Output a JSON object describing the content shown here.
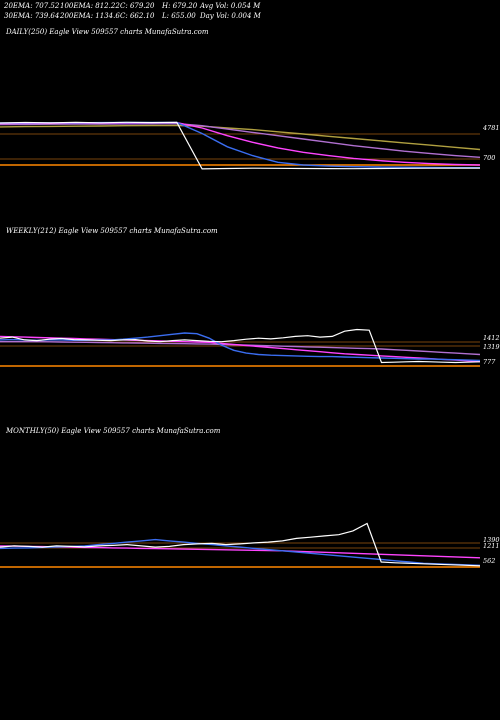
{
  "header": {
    "row1": [
      "20EMA: 707.52",
      "100EMA: 812.22",
      "C: 679.20",
      "H: 679.20",
      "Avg Vol: 0.054  M"
    ],
    "row2": [
      "30EMA: 739.64",
      "200EMA: 1134.6",
      "C: 662.10",
      "L: 655.00",
      "Day Vol: 0.004  M"
    ]
  },
  "colors": {
    "background": "#000000",
    "price": "#ffffff",
    "ema_fast": "#3a6df0",
    "ema_pink": "#ff44ff",
    "ema_purple": "#b070d0",
    "ema_orange": "#e07820",
    "ema_olive": "#b0a040",
    "ref_line": "#a05a10",
    "volume_line": "#ff8800"
  },
  "chart_data": [
    {
      "type": "line",
      "title": "DAILY(250) Eagle  View  509557 charts MunafaSutra.com",
      "right_labels": [
        "4781",
        "700"
      ],
      "series": [
        {
          "values": [
            4750,
            4790,
            4760,
            4800,
            4770,
            4810,
            4780,
            4800,
            600,
            640,
            660,
            650,
            640,
            630,
            620,
            640,
            650,
            660,
            670,
            670
          ]
        },
        {
          "values": [
            4750,
            4760,
            4770,
            4770,
            4780,
            4790,
            4790,
            4790,
            3800,
            2600,
            1800,
            1200,
            950,
            850,
            800,
            770,
            750,
            730,
            710,
            710
          ]
        },
        {
          "values": [
            4700,
            4720,
            4730,
            4740,
            4750,
            4760,
            4770,
            4780,
            4300,
            3600,
            3000,
            2500,
            2100,
            1800,
            1550,
            1350,
            1200,
            1080,
            1000,
            950
          ]
        },
        {
          "values": [
            4600,
            4620,
            4640,
            4650,
            4660,
            4670,
            4680,
            4690,
            4500,
            4200,
            3900,
            3600,
            3300,
            3000,
            2700,
            2450,
            2200,
            2000,
            1800,
            1650
          ]
        },
        {
          "values": [
            4400,
            4420,
            4440,
            4460,
            4480,
            4500,
            4510,
            4520,
            4460,
            4300,
            4150,
            3950,
            3750,
            3550,
            3350,
            3150,
            2950,
            2750,
            2550,
            2350
          ]
        }
      ]
    },
    {
      "type": "line",
      "title": "WEEKLY(212) Eagle  View  509557 charts MunafaSutra.com",
      "right_labels": [
        "1412",
        "1319",
        "777"
      ],
      "series": [
        {
          "values": [
            1350,
            1380,
            1300,
            1280,
            1320,
            1340,
            1310,
            1300,
            1290,
            1280,
            1300,
            1310,
            1270,
            1250,
            1280,
            1300,
            1280,
            1260,
            1250,
            1280,
            1320,
            1350,
            1330,
            1360,
            1400,
            1420,
            1380,
            1400,
            1550,
            1600,
            1580,
            650,
            660,
            670,
            680,
            670,
            660,
            650,
            660,
            670
          ]
        },
        {
          "values": [
            1300,
            1310,
            1300,
            1290,
            1300,
            1300,
            1290,
            1290,
            1300,
            1300,
            1320,
            1350,
            1380,
            1420,
            1460,
            1500,
            1480,
            1350,
            1150,
            1000,
            920,
            880,
            860,
            850,
            840,
            830,
            820,
            820,
            810,
            800,
            790,
            780,
            770,
            760,
            750,
            750,
            740,
            730,
            720,
            710
          ]
        },
        {
          "values": [
            1400,
            1390,
            1380,
            1370,
            1360,
            1350,
            1340,
            1330,
            1320,
            1310,
            1300,
            1290,
            1280,
            1270,
            1260,
            1250,
            1240,
            1230,
            1200,
            1170,
            1140,
            1110,
            1080,
            1050,
            1020,
            990,
            960,
            930,
            900,
            880,
            860,
            840,
            820,
            800,
            780,
            760,
            740,
            720,
            700,
            680
          ]
        },
        {
          "values": [
            1250,
            1250,
            1250,
            1250,
            1245,
            1240,
            1235,
            1230,
            1225,
            1220,
            1215,
            1210,
            1205,
            1200,
            1195,
            1190,
            1185,
            1180,
            1170,
            1160,
            1150,
            1140,
            1130,
            1120,
            1110,
            1100,
            1090,
            1080,
            1070,
            1060,
            1050,
            1040,
            1020,
            1000,
            980,
            960,
            940,
            920,
            900,
            880
          ]
        }
      ]
    },
    {
      "type": "line",
      "title": "MONTHLY(50) Eagle  View  509557 charts MunafaSutra.com",
      "right_labels": [
        "1390",
        "1211",
        "562"
      ],
      "series": [
        {
          "values": [
            1250,
            1300,
            1280,
            1250,
            1300,
            1280,
            1260,
            1300,
            1320,
            1350,
            1300,
            1250,
            1280,
            1350,
            1380,
            1400,
            1350,
            1380,
            1420,
            1450,
            1500,
            1600,
            1650,
            1700,
            1750,
            1900,
            2200,
            650,
            620,
            600,
            580,
            560,
            540,
            520,
            500
          ]
        },
        {
          "values": [
            1200,
            1210,
            1220,
            1240,
            1260,
            1280,
            1300,
            1350,
            1400,
            1450,
            1500,
            1550,
            1500,
            1450,
            1400,
            1350,
            1300,
            1250,
            1200,
            1150,
            1100,
            1050,
            1000,
            950,
            900,
            850,
            800,
            750,
            700,
            650,
            600,
            580,
            560,
            540,
            520
          ]
        },
        {
          "values": [
            1300,
            1290,
            1280,
            1270,
            1260,
            1250,
            1240,
            1230,
            1220,
            1210,
            1200,
            1190,
            1180,
            1170,
            1160,
            1150,
            1140,
            1130,
            1120,
            1110,
            1100,
            1080,
            1060,
            1040,
            1020,
            1000,
            980,
            960,
            940,
            920,
            900,
            880,
            860,
            840,
            820
          ]
        }
      ]
    }
  ]
}
